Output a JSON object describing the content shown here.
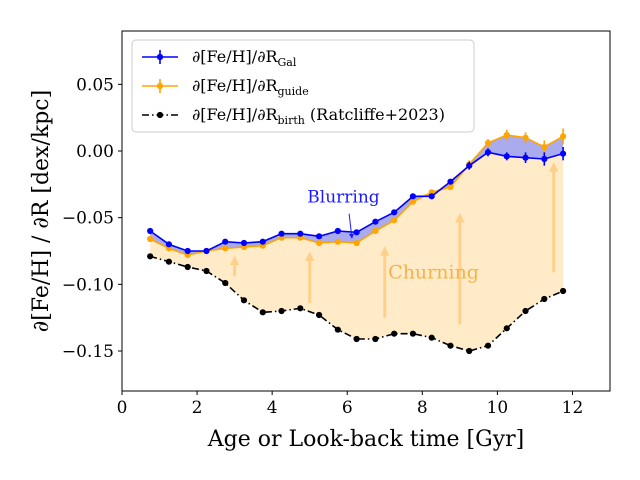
{
  "chart_data": {
    "type": "line",
    "xlabel": "Age or Look-back time [Gyr]",
    "ylabel": "∂[Fe/H] / ∂R [dex/kpc]",
    "xlim": [
      0,
      13
    ],
    "ylim": [
      -0.18,
      0.09
    ],
    "xticks": [
      0,
      2,
      4,
      6,
      8,
      10,
      12
    ],
    "xtick_labels": [
      "0",
      "2",
      "4",
      "6",
      "8",
      "10",
      "12"
    ],
    "yticks": [
      -0.15,
      -0.1,
      -0.05,
      0.0,
      0.05
    ],
    "ytick_labels": [
      "−0.15",
      "−0.10",
      "−0.05",
      "0.00",
      "0.05"
    ],
    "grid": false,
    "legend_position": "top-left",
    "x": [
      0.75,
      1.25,
      1.75,
      2.25,
      2.75,
      3.25,
      3.75,
      4.25,
      4.75,
      5.25,
      5.75,
      6.25,
      6.75,
      7.25,
      7.75,
      8.25,
      8.75,
      9.25,
      9.75,
      10.25,
      10.75,
      11.25,
      11.75
    ],
    "series": [
      {
        "name": "∂[Fe/H]/∂R_Gal",
        "color": "#0000ff",
        "style": "solid",
        "values": [
          -0.06,
          -0.07,
          -0.075,
          -0.075,
          -0.068,
          -0.069,
          -0.068,
          -0.062,
          -0.062,
          -0.064,
          -0.06,
          -0.061,
          -0.053,
          -0.046,
          -0.034,
          -0.034,
          -0.023,
          -0.011,
          -0.001,
          -0.004,
          -0.005,
          -0.006,
          -0.002
        ],
        "errors": [
          0.001,
          0.001,
          0.001,
          0.001,
          0.001,
          0.001,
          0.001,
          0.001,
          0.001,
          0.001,
          0.001,
          0.001,
          0.002,
          0.002,
          0.002,
          0.002,
          0.002,
          0.003,
          0.003,
          0.003,
          0.004,
          0.005,
          0.005
        ]
      },
      {
        "name": "∂[Fe/H]/∂R_guide",
        "color": "#ffa500",
        "style": "solid",
        "values": [
          -0.066,
          -0.073,
          -0.078,
          -0.075,
          -0.073,
          -0.072,
          -0.071,
          -0.065,
          -0.065,
          -0.069,
          -0.068,
          -0.069,
          -0.06,
          -0.052,
          -0.038,
          -0.031,
          -0.027,
          -0.01,
          0.006,
          0.012,
          0.01,
          0.003,
          0.011
        ],
        "errors": [
          0.001,
          0.001,
          0.001,
          0.001,
          0.001,
          0.001,
          0.001,
          0.001,
          0.001,
          0.001,
          0.001,
          0.001,
          0.002,
          0.002,
          0.002,
          0.002,
          0.002,
          0.003,
          0.003,
          0.004,
          0.004,
          0.005,
          0.006
        ]
      },
      {
        "name": "∂[Fe/H]/∂R_birth (Ratcliffe+2023)",
        "color": "#000000",
        "style": "dashdot",
        "values": [
          -0.079,
          -0.083,
          -0.087,
          -0.09,
          -0.099,
          -0.112,
          -0.121,
          -0.12,
          -0.118,
          -0.123,
          -0.134,
          -0.141,
          -0.141,
          -0.137,
          -0.137,
          -0.14,
          -0.146,
          -0.15,
          -0.146,
          -0.133,
          -0.12,
          -0.111,
          -0.105
        ]
      }
    ],
    "legend": [
      {
        "prefix": "∂[Fe/H]/∂R",
        "sub": "Gal",
        "suffix": ""
      },
      {
        "prefix": "∂[Fe/H]/∂R",
        "sub": "guide",
        "suffix": ""
      },
      {
        "prefix": "∂[Fe/H]/∂R",
        "sub": "birth",
        "suffix": " (Ratcliffe+2023)"
      }
    ],
    "annotations": [
      {
        "text": "Blurring",
        "x": 5.9,
        "y": -0.0385,
        "color": "#1a1aff"
      },
      {
        "text": "Churning",
        "x": 8.3,
        "y": -0.0955,
        "color": "#f5b247"
      }
    ],
    "churning_arrows": [
      {
        "x": 3.0,
        "y_from": -0.094,
        "y_to": -0.082
      },
      {
        "x": 5.0,
        "y_from": -0.114,
        "y_to": -0.079
      },
      {
        "x": 7.0,
        "y_from": -0.125,
        "y_to": -0.075
      },
      {
        "x": 9.0,
        "y_from": -0.13,
        "y_to": -0.05
      },
      {
        "x": 11.5,
        "y_from": -0.091,
        "y_to": -0.012
      }
    ],
    "blurring_arrow": {
      "x_from": 6.05,
      "y_from": -0.047,
      "x_to": 6.12,
      "y_to": -0.064
    },
    "fill_colors": {
      "blurring": "#aaaaee",
      "churning": "#ffebc8"
    }
  }
}
